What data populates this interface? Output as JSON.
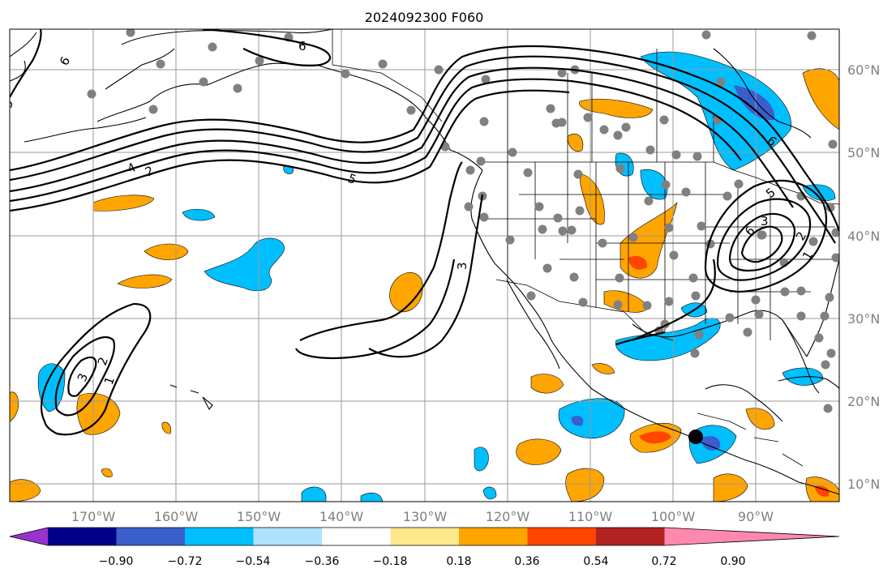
{
  "title": "2024092300 F060",
  "map": {
    "lon_labels": [
      "170°W",
      "160°W",
      "150°W",
      "140°W",
      "130°W",
      "120°W",
      "110°W",
      "100°W",
      "90°W"
    ],
    "lat_labels": [
      "60°N",
      "50°N",
      "40°N",
      "30°N",
      "20°N",
      "10°N"
    ],
    "contour_labels": [
      "6",
      "6",
      "5",
      "4",
      "2",
      "5",
      "3",
      "3",
      "2",
      "1",
      "3",
      "6",
      "2",
      "1",
      "6",
      "5"
    ],
    "grid": true,
    "marker": "black station dot near southern Mexico",
    "station_dots_color": "#808080"
  },
  "colorbar": {
    "tick_labels": [
      "−0.90",
      "−0.72",
      "−0.54",
      "−0.36",
      "−0.18",
      "0.18",
      "0.36",
      "0.54",
      "0.72",
      "0.90"
    ],
    "colors": [
      "#9932cc",
      "#00008b",
      "#3a5fcd",
      "#00bfff",
      "#b0e2ff",
      "#ffffff",
      "#fee88b",
      "#ffa500",
      "#ff4500",
      "#b22222",
      "#ff89ae"
    ]
  }
}
